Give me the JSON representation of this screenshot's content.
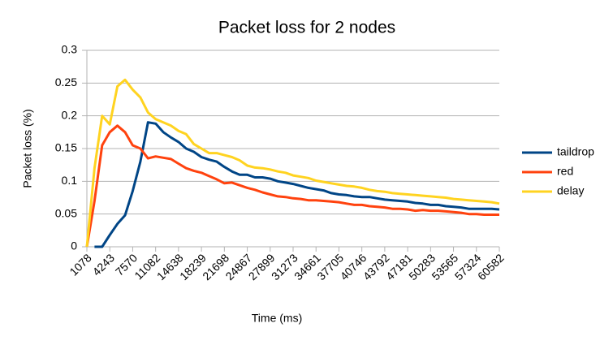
{
  "chart_data": {
    "type": "line",
    "title": "Packet loss for 2 nodes",
    "x_label": "Time (ms)",
    "y_label": "Packet loss (%)",
    "categories": [
      "1078",
      null,
      null,
      "4243",
      null,
      null,
      "7570",
      null,
      null,
      "11082",
      null,
      null,
      "14638",
      null,
      null,
      "18239",
      null,
      null,
      "21698",
      null,
      null,
      "24867",
      null,
      null,
      "27899",
      null,
      null,
      "31273",
      null,
      null,
      "34661",
      null,
      null,
      "37705",
      null,
      null,
      "40746",
      null,
      null,
      "43792",
      null,
      null,
      "47181",
      null,
      null,
      "50283",
      null,
      null,
      "53565",
      null,
      null,
      "57324",
      null,
      null,
      "60582"
    ],
    "series": [
      {
        "name": "taildrop",
        "color": "#004586",
        "values": [
          null,
          0,
          0,
          0.018,
          0.035,
          0.048,
          0.085,
          0.13,
          0.19,
          0.188,
          0.175,
          0.167,
          0.16,
          0.15,
          0.145,
          0.137,
          0.133,
          0.13,
          0.122,
          0.115,
          0.11,
          0.11,
          0.106,
          0.106,
          0.104,
          0.1,
          0.098,
          0.096,
          0.093,
          0.09,
          0.088,
          0.086,
          0.082,
          0.08,
          0.079,
          0.077,
          0.076,
          0.076,
          0.074,
          0.072,
          0.071,
          0.07,
          0.069,
          0.067,
          0.066,
          0.064,
          0.064,
          0.062,
          0.061,
          0.06,
          0.058,
          0.058,
          0.058,
          0.058,
          0.057
        ]
      },
      {
        "name": "red",
        "color": "#ff420e",
        "values": [
          0,
          0.07,
          0.155,
          0.175,
          0.185,
          0.175,
          0.155,
          0.15,
          0.135,
          0.138,
          0.136,
          0.134,
          0.127,
          0.12,
          0.116,
          0.113,
          0.108,
          0.103,
          0.097,
          0.098,
          0.094,
          0.09,
          0.087,
          0.083,
          0.08,
          0.077,
          0.076,
          0.074,
          0.073,
          0.071,
          0.071,
          0.07,
          0.069,
          0.068,
          0.066,
          0.064,
          0.064,
          0.062,
          0.061,
          0.06,
          0.058,
          0.058,
          0.057,
          0.055,
          0.056,
          0.055,
          0.055,
          0.054,
          0.053,
          0.052,
          0.05,
          0.05,
          0.049,
          0.049,
          0.049
        ]
      },
      {
        "name": "delay",
        "color": "#ffd320",
        "values": [
          0,
          0.12,
          0.2,
          0.187,
          0.245,
          0.255,
          0.24,
          0.228,
          0.205,
          0.195,
          0.19,
          0.185,
          0.177,
          0.172,
          0.157,
          0.15,
          0.143,
          0.143,
          0.14,
          0.137,
          0.132,
          0.124,
          0.121,
          0.12,
          0.118,
          0.115,
          0.113,
          0.109,
          0.107,
          0.105,
          0.101,
          0.099,
          0.097,
          0.095,
          0.093,
          0.092,
          0.09,
          0.087,
          0.085,
          0.084,
          0.082,
          0.081,
          0.08,
          0.079,
          0.078,
          0.077,
          0.076,
          0.075,
          0.073,
          0.072,
          0.071,
          0.07,
          0.069,
          0.068,
          0.066
        ]
      }
    ],
    "ylim": [
      0,
      0.3
    ],
    "yticks": [
      0,
      0.05,
      0.1,
      0.15,
      0.2,
      0.25,
      0.3
    ],
    "grid": true,
    "legend": "right"
  }
}
